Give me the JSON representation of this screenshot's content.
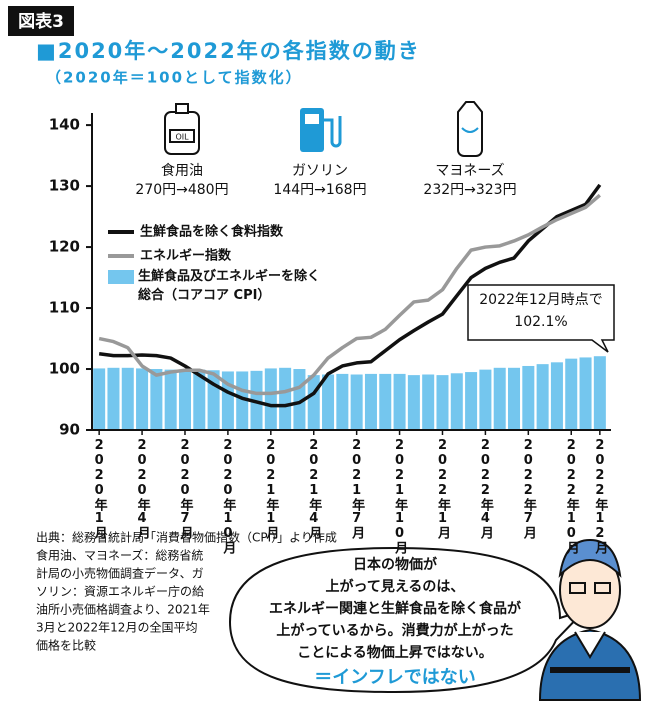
{
  "chart_data": {
    "type": "combo",
    "badge": "図表3",
    "title": "■2020年～2022年の各指数の動き",
    "subtitle": "（2020年＝100として指数化）",
    "categories": [
      "2020年1月",
      null,
      null,
      "2020年4月",
      null,
      null,
      "2020年7月",
      null,
      null,
      "2020年10月",
      null,
      null,
      "2021年1月",
      null,
      null,
      "2021年4月",
      null,
      null,
      "2021年7月",
      null,
      null,
      "2021年10月",
      null,
      null,
      "2022年1月",
      null,
      null,
      "2022年4月",
      null,
      null,
      "2022年7月",
      null,
      null,
      "2022年10月",
      null,
      "2022年12月"
    ],
    "ylim": [
      90,
      141
    ],
    "yticks": [
      90,
      100,
      110,
      120,
      130,
      140
    ],
    "legend": "upper left",
    "series": [
      {
        "name": "生鮮食品を除く食料指数",
        "type": "line",
        "color": "#111111",
        "values": [
          102.5,
          102.2,
          102.2,
          102.3,
          102.2,
          101.8,
          100.5,
          99.0,
          97.5,
          96.2,
          95.2,
          94.6,
          94.0,
          94.0,
          94.5,
          96.0,
          99.2,
          100.5,
          101.0,
          101.2,
          103.0,
          104.8,
          106.3,
          107.7,
          109.0,
          112.0,
          115.0,
          116.5,
          117.5,
          118.2,
          121.0,
          123.0,
          125.0,
          126.0,
          127.0,
          130.2
        ]
      },
      {
        "name": "エネルギー指数",
        "type": "line",
        "color": "#999999",
        "values": [
          105.0,
          104.5,
          103.5,
          100.5,
          99.0,
          99.5,
          99.8,
          99.8,
          99.2,
          97.5,
          96.5,
          96.0,
          96.0,
          96.3,
          97.0,
          99.0,
          101.8,
          103.5,
          105.0,
          105.2,
          106.5,
          108.8,
          111.0,
          111.3,
          113.0,
          116.5,
          119.5,
          120.0,
          120.2,
          121.0,
          122.0,
          123.3,
          124.5,
          125.5,
          126.5,
          128.5
        ]
      },
      {
        "name": "生鮮食品及びエネルギーを除く総合（コアコア CPI）",
        "type": "bar",
        "color": "#74c6ee",
        "values": [
          100.1,
          100.2,
          100.2,
          100.1,
          100.0,
          99.9,
          99.9,
          99.9,
          99.8,
          99.6,
          99.6,
          99.7,
          100.1,
          100.2,
          100.0,
          99.0,
          99.1,
          99.2,
          99.1,
          99.2,
          99.2,
          99.2,
          99.0,
          99.1,
          99.0,
          99.3,
          99.5,
          99.9,
          100.2,
          100.2,
          100.5,
          100.8,
          101.1,
          101.7,
          101.9,
          102.1
        ]
      }
    ],
    "products": [
      {
        "name": "食用油",
        "price": "270円→480円"
      },
      {
        "name": "ガソリン",
        "price": "144円→168円"
      },
      {
        "name": "マヨネーズ",
        "price": "232円→323円"
      }
    ],
    "callout": [
      "2022年12月時点で",
      "102.1%"
    ],
    "notes": [
      "出典：総務省統計局「消費者物価指数（CPI）」より作成",
      "食用油、マヨネーズ：総務省統",
      "計局の小売物価調査データ、ガ",
      "ソリン：資源エネルギー庁の給",
      "油所小売価格調査より、2021年",
      "3月と2022年12月の全国平均",
      "価格を比較"
    ],
    "speech": [
      "日本の物価が",
      "上がって見えるのは、",
      "エネルギー関連と生鮮食品を除く食品が",
      "上がっているから。消費力が上がった",
      "ことによる物価上昇ではない。",
      "＝インフレではない"
    ]
  }
}
